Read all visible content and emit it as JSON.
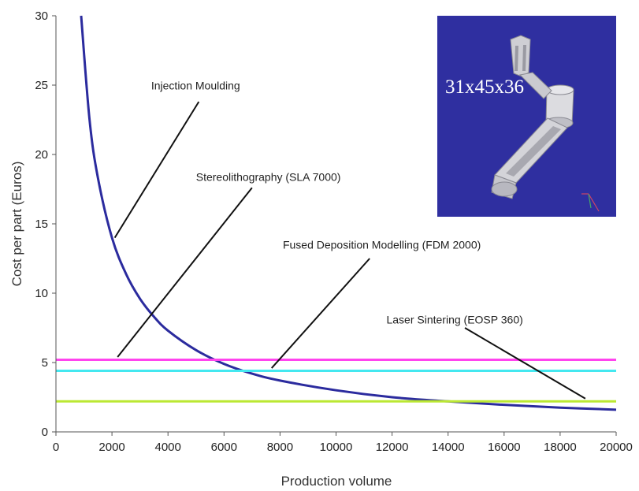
{
  "chart_data": {
    "type": "line",
    "title": "",
    "xlabel": "Production volume",
    "ylabel": "Cost per part (Euros)",
    "xlim": [
      0,
      20000
    ],
    "ylim": [
      0,
      30
    ],
    "xticks": [
      0,
      2000,
      4000,
      6000,
      8000,
      10000,
      12000,
      14000,
      16000,
      18000,
      20000
    ],
    "xtick_labels": [
      "0",
      "2000",
      "4000",
      "6000",
      "8000",
      "10000",
      "12000",
      "14000",
      "16000",
      "18000",
      "20000"
    ],
    "yticks": [
      0,
      5,
      10,
      15,
      20,
      25,
      30
    ],
    "ytick_labels": [
      "0",
      "5",
      "10",
      "15",
      "20",
      "25",
      "30"
    ],
    "grid": false,
    "series": [
      {
        "name": "Injection Moulding",
        "kind": "curve",
        "color": "#2b2b9e",
        "x": [
          900,
          1200,
          1500,
          2000,
          2500,
          3000,
          3500,
          4000,
          5000,
          6000,
          7000,
          8000,
          10000,
          12000,
          14000,
          16000,
          18000,
          20000
        ],
        "y": [
          30,
          22.5,
          18.3,
          14,
          11.4,
          9.6,
          8.3,
          7.3,
          5.9,
          4.9,
          4.2,
          3.7,
          3.0,
          2.5,
          2.2,
          1.95,
          1.75,
          1.6
        ]
      },
      {
        "name": "Stereolithography (SLA 7000)",
        "kind": "constant",
        "color": "#ff44ee",
        "x": [
          0,
          20000
        ],
        "y": [
          5.2,
          5.2
        ]
      },
      {
        "name": "Fused Deposition Modelling (FDM 2000)",
        "kind": "constant",
        "color": "#44e8f0",
        "x": [
          0,
          20000
        ],
        "y": [
          4.4,
          4.4
        ]
      },
      {
        "name": "Laser Sintering (EOSP 360)",
        "kind": "constant",
        "color": "#bbe833",
        "x": [
          0,
          20000
        ],
        "y": [
          2.2,
          2.2
        ]
      }
    ],
    "annotations": [
      {
        "text": "Injection Moulding",
        "text_x": 3400,
        "text_y": 24.7,
        "from": [
          5100,
          23.8
        ],
        "to": [
          2100,
          14.0
        ]
      },
      {
        "text": "Stereolithography (SLA 7000)",
        "text_x": 5000,
        "text_y": 18.1,
        "from": [
          7000,
          17.6
        ],
        "to": [
          2200,
          5.4
        ]
      },
      {
        "text": "Fused Deposition Modelling (FDM 2000)",
        "text_x": 8100,
        "text_y": 13.2,
        "from": [
          11200,
          12.5
        ],
        "to": [
          7700,
          4.6
        ]
      },
      {
        "text": "Laser Sintering (EOSP 360)",
        "text_x": 11800,
        "text_y": 7.8,
        "from": [
          14600,
          7.5
        ],
        "to": [
          18900,
          2.4
        ]
      }
    ],
    "inset": {
      "label": "31x45x36",
      "background": "#2f2fa0",
      "description_icon": "3d-part-render"
    }
  }
}
